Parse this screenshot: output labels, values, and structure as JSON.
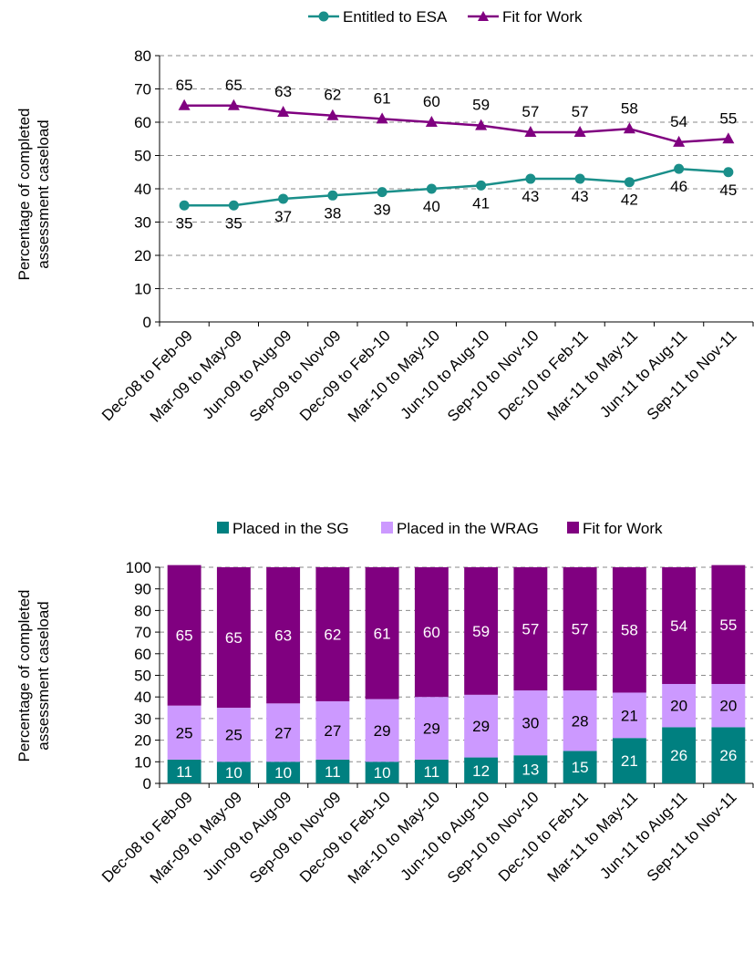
{
  "chart_data": [
    {
      "type": "line",
      "title": "",
      "xlabel": "",
      "ylabel": "Percentage of completed assessment caseload",
      "ylabel_lines": [
        "Percentage of completed",
        "assessment caseload"
      ],
      "ylim": [
        0,
        80
      ],
      "yticks": [
        0,
        10,
        20,
        30,
        40,
        50,
        60,
        70,
        80
      ],
      "grid": "dashed horizontal",
      "legend_position": "top",
      "categories": [
        "Dec-08 to Feb-09",
        "Mar-09 to May-09",
        "Jun-09 to Aug-09",
        "Sep-09 to Nov-09",
        "Dec-09 to Feb-10",
        "Mar-10 to May-10",
        "Jun-10 to Aug-10",
        "Sep-10 to Nov-10",
        "Dec-10 to Feb-11",
        "Mar-11 to May-11",
        "Jun-11 to Aug-11",
        "Sep-11 to Nov-11"
      ],
      "series": [
        {
          "name": "Entitled to ESA",
          "color": "#1a8f8a",
          "marker": "circle",
          "values": [
            35,
            35,
            37,
            38,
            39,
            40,
            41,
            43,
            43,
            42,
            46,
            45
          ]
        },
        {
          "name": "Fit for Work",
          "color": "#800080",
          "marker": "triangle",
          "values": [
            65,
            65,
            63,
            62,
            61,
            60,
            59,
            57,
            57,
            58,
            54,
            55
          ]
        }
      ]
    },
    {
      "type": "bar",
      "stacked": true,
      "title": "",
      "xlabel": "",
      "ylabel": "Percentage of completed assessment caseload",
      "ylabel_lines": [
        "Percentage of completed",
        "assessment caseload"
      ],
      "ylim": [
        0,
        100
      ],
      "yticks": [
        0,
        10,
        20,
        30,
        40,
        50,
        60,
        70,
        80,
        90,
        100
      ],
      "grid": "dashed horizontal",
      "legend_position": "top",
      "categories": [
        "Dec-08 to Feb-09",
        "Mar-09 to May-09",
        "Jun-09 to Aug-09",
        "Sep-09 to Nov-09",
        "Dec-09 to Feb-10",
        "Mar-10 to May-10",
        "Jun-10 to Aug-10",
        "Sep-10 to Nov-10",
        "Dec-10 to Feb-11",
        "Mar-11 to May-11",
        "Jun-11 to Aug-11",
        "Sep-11 to Nov-11"
      ],
      "series": [
        {
          "name": "Placed in the SG",
          "color": "#008080",
          "label_color": "#ffffff",
          "values": [
            11,
            10,
            10,
            11,
            10,
            11,
            12,
            13,
            15,
            21,
            26,
            26
          ]
        },
        {
          "name": "Placed in the WRAG",
          "color": "#cc99ff",
          "label_color": "#000000",
          "values": [
            25,
            25,
            27,
            27,
            29,
            29,
            29,
            30,
            28,
            21,
            20,
            20
          ]
        },
        {
          "name": "Fit for Work",
          "color": "#800080",
          "label_color": "#ffffff",
          "values": [
            65,
            65,
            63,
            62,
            61,
            60,
            59,
            57,
            57,
            58,
            54,
            55
          ]
        }
      ]
    }
  ]
}
